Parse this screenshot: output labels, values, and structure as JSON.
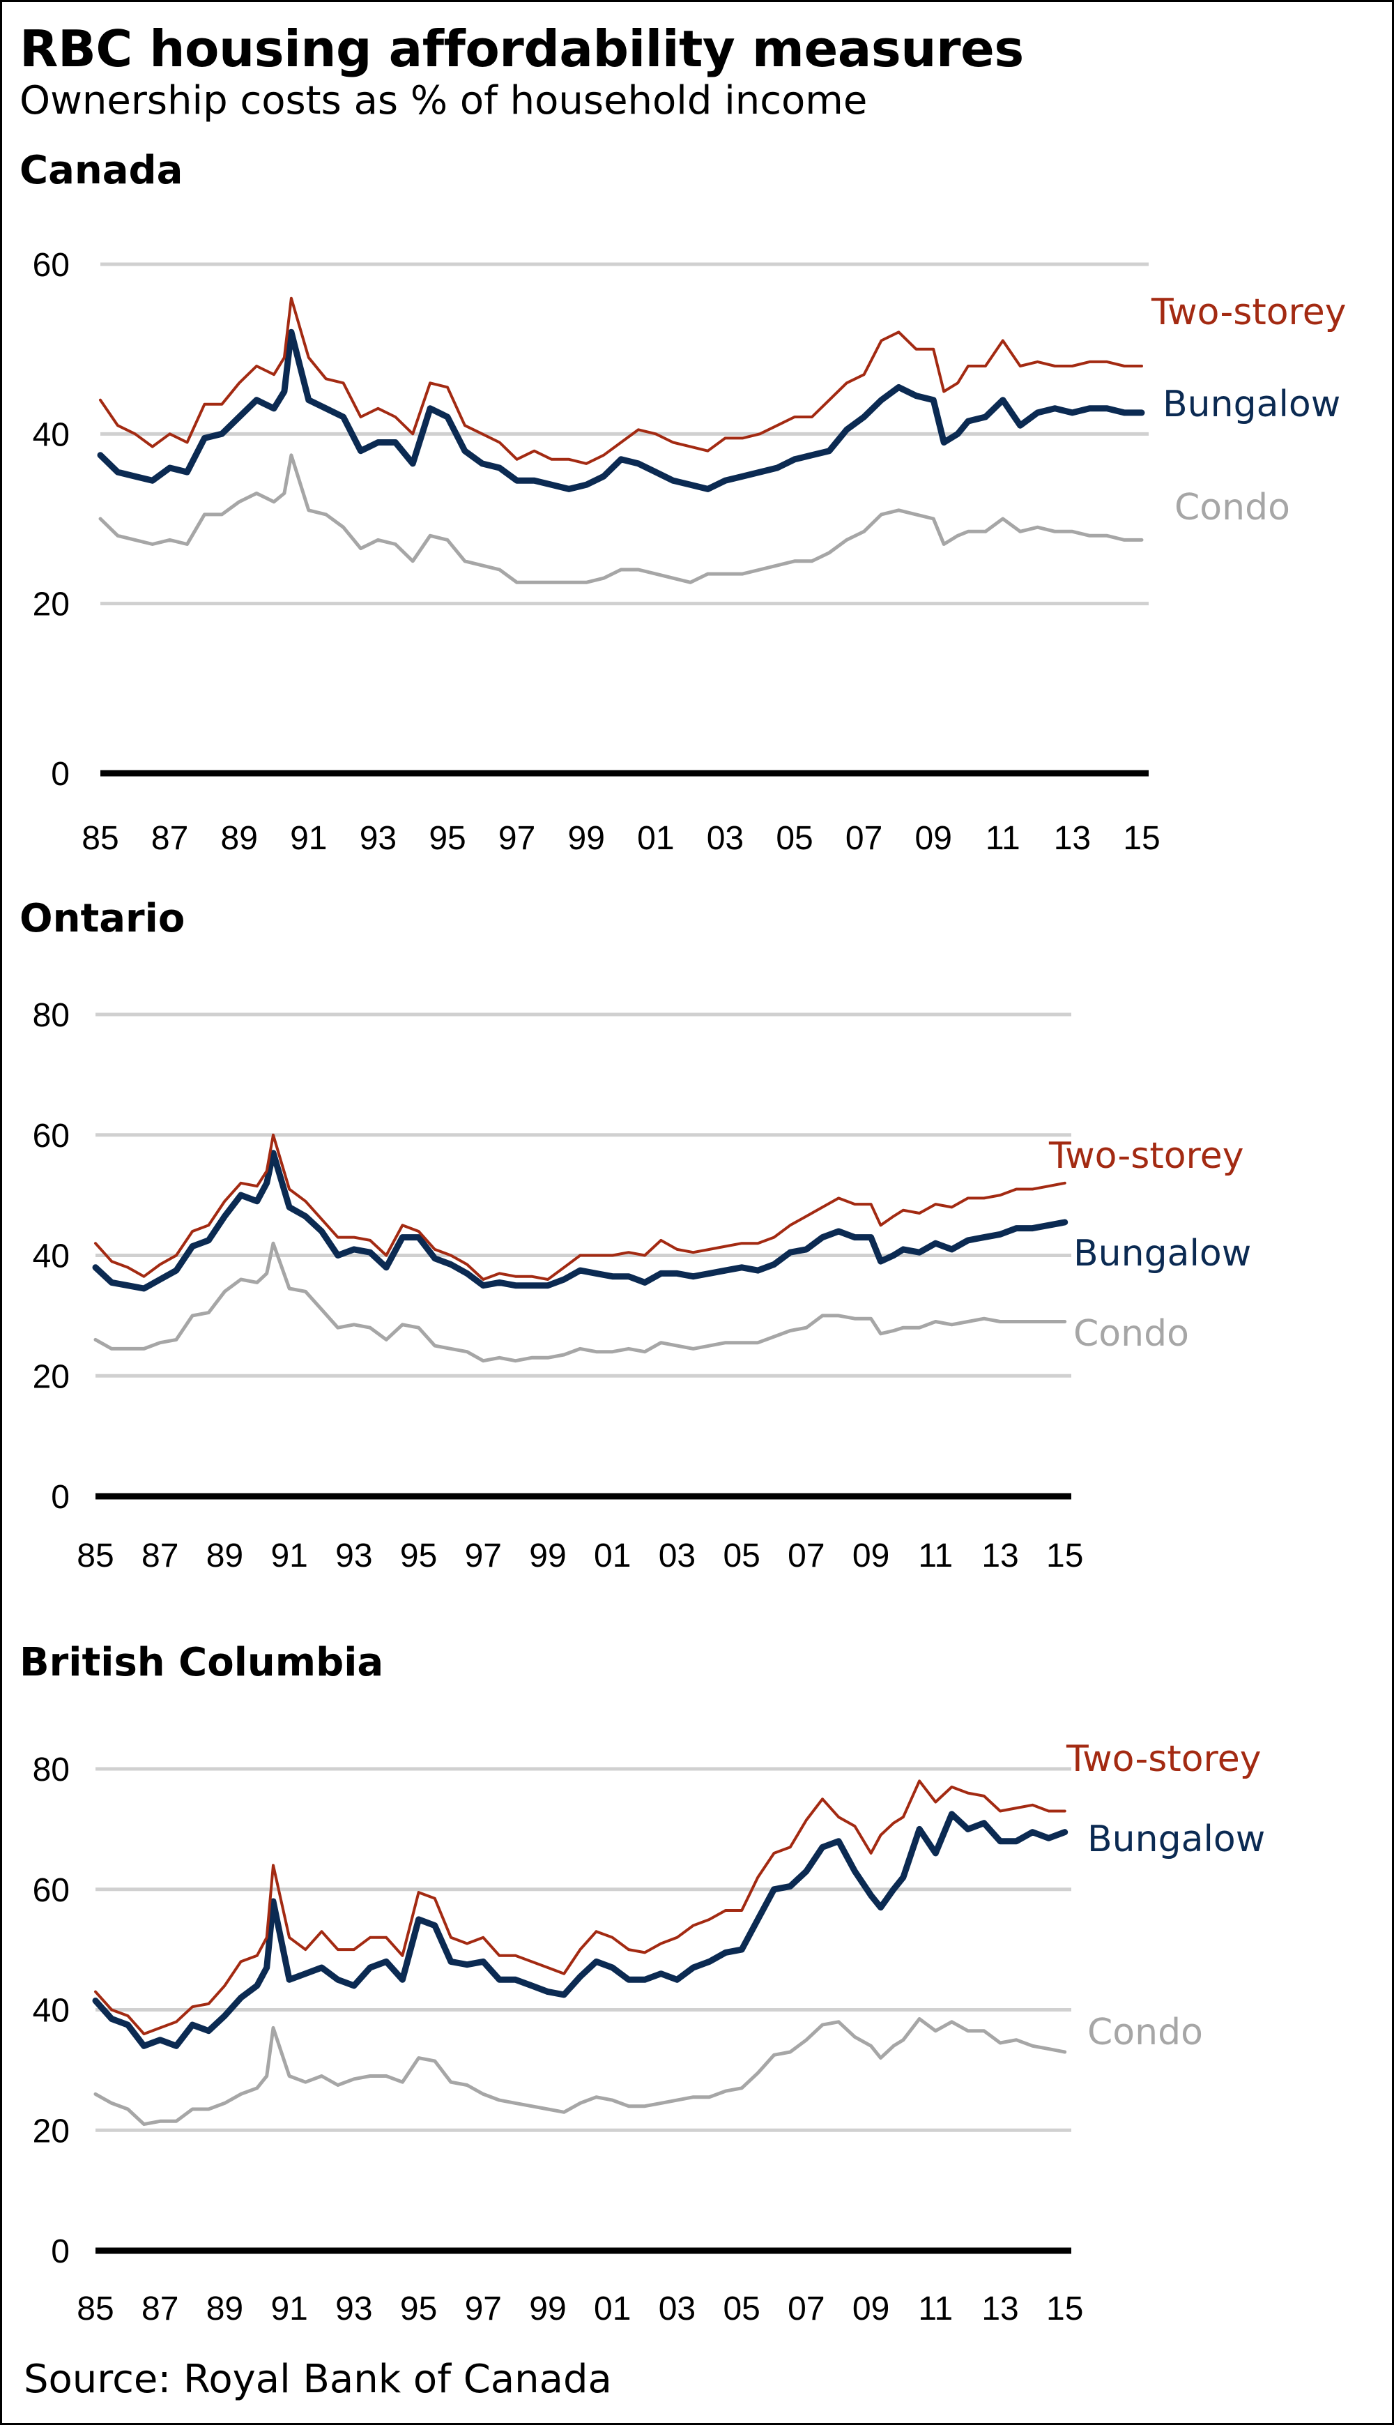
{
  "header": {
    "title": "RBC housing affordability measures",
    "subtitle": "Ownership costs as % of household income"
  },
  "footer": {
    "source": "Source: Royal Bank of Canada"
  },
  "colors": {
    "two_storey": "#a32a12",
    "bungalow": "#0b2a52",
    "condo": "#a6a6a6",
    "grid": "#d0d0d0",
    "axis": "#000000"
  },
  "chart_data": [
    {
      "type": "line",
      "title": "Canada",
      "xlabel": "",
      "ylabel": "",
      "ylim": [
        0,
        60
      ],
      "yticks": [
        "0",
        "20",
        "40",
        "60"
      ],
      "xlim": [
        1985,
        2015.2
      ],
      "xticks": [
        "85",
        "87",
        "89",
        "91",
        "93",
        "95",
        "97",
        "99",
        "01",
        "03",
        "05",
        "07",
        "09",
        "11",
        "13",
        "15"
      ],
      "grid": true,
      "legend": "inline-right",
      "x": [
        1985,
        1985.5,
        1986,
        1986.5,
        1987,
        1987.5,
        1988,
        1988.5,
        1989,
        1989.5,
        1990,
        1990.3,
        1990.5,
        1991,
        1991.5,
        1992,
        1992.5,
        1993,
        1993.5,
        1994,
        1994.5,
        1995,
        1995.5,
        1996,
        1996.5,
        1997,
        1997.5,
        1998,
        1998.5,
        1999,
        1999.5,
        2000,
        2000.5,
        2001,
        2001.5,
        2002,
        2002.5,
        2003,
        2003.5,
        2004,
        2004.5,
        2005,
        2005.5,
        2006,
        2006.5,
        2007,
        2007.5,
        2008,
        2008.5,
        2009,
        2009.3,
        2009.7,
        2010,
        2010.5,
        2011,
        2011.5,
        2012,
        2012.5,
        2013,
        2013.5,
        2014,
        2014.5,
        2015
      ],
      "series": [
        {
          "name": "Two-storey",
          "values": [
            44,
            41,
            40,
            38.5,
            40,
            39,
            43.5,
            43.5,
            46,
            48,
            47,
            49,
            56,
            49,
            46.5,
            46,
            42,
            43,
            42,
            40,
            46,
            45.5,
            41,
            40,
            39,
            37,
            38,
            37,
            37,
            36.5,
            37.5,
            39,
            40.5,
            40,
            39,
            38.5,
            38,
            39.5,
            39.5,
            40,
            41,
            42,
            42,
            44,
            46,
            47,
            51,
            52,
            50,
            50,
            45,
            46,
            48,
            48,
            51,
            48,
            48.5,
            48,
            48,
            48.5,
            48.5,
            48,
            48
          ]
        },
        {
          "name": "Bungalow",
          "values": [
            37.5,
            35.5,
            35,
            34.5,
            36,
            35.5,
            39.5,
            40,
            42,
            44,
            43,
            45,
            52,
            44,
            43,
            42,
            38,
            39,
            39,
            36.5,
            43,
            42,
            38,
            36.5,
            36,
            34.5,
            34.5,
            34,
            33.5,
            34,
            35,
            37,
            36.5,
            35.5,
            34.5,
            34,
            33.5,
            34.5,
            35,
            35.5,
            36,
            37,
            37.5,
            38,
            40.5,
            42,
            44,
            45.5,
            44.5,
            44,
            39,
            40,
            41.5,
            42,
            44,
            41,
            42.5,
            43,
            42.5,
            43,
            43,
            42.5,
            42.5
          ]
        },
        {
          "name": "Condo",
          "values": [
            30,
            28,
            27.5,
            27,
            27.5,
            27,
            30.5,
            30.5,
            32,
            33,
            32,
            33,
            37.5,
            31,
            30.5,
            29,
            26.5,
            27.5,
            27,
            25,
            28,
            27.5,
            25,
            24.5,
            24,
            22.5,
            22.5,
            22.5,
            22.5,
            22.5,
            23,
            24,
            24,
            23.5,
            23,
            22.5,
            23.5,
            23.5,
            23.5,
            24,
            24.5,
            25,
            25,
            26,
            27.5,
            28.5,
            30.5,
            31,
            30.5,
            30,
            27,
            28,
            28.5,
            28.5,
            30,
            28.5,
            29,
            28.5,
            28.5,
            28,
            28,
            27.5,
            27.5
          ]
        }
      ]
    },
    {
      "type": "line",
      "title": "Ontario",
      "xlabel": "",
      "ylabel": "",
      "ylim": [
        0,
        80
      ],
      "yticks": [
        "0",
        "20",
        "40",
        "60",
        "80"
      ],
      "xlim": [
        1985,
        2015.2
      ],
      "xticks": [
        "85",
        "87",
        "89",
        "91",
        "93",
        "95",
        "97",
        "99",
        "01",
        "03",
        "05",
        "07",
        "09",
        "11",
        "13",
        "15"
      ],
      "grid": true,
      "legend": "inline-right",
      "x": [
        1985,
        1985.5,
        1986,
        1986.5,
        1987,
        1987.5,
        1988,
        1988.5,
        1989,
        1989.5,
        1990,
        1990.3,
        1990.5,
        1991,
        1991.5,
        1992,
        1992.5,
        1993,
        1993.5,
        1994,
        1994.5,
        1995,
        1995.5,
        1996,
        1996.5,
        1997,
        1997.5,
        1998,
        1998.5,
        1999,
        1999.5,
        2000,
        2000.5,
        2001,
        2001.5,
        2002,
        2002.5,
        2003,
        2003.5,
        2004,
        2004.5,
        2005,
        2005.5,
        2006,
        2006.5,
        2007,
        2007.5,
        2008,
        2008.5,
        2009,
        2009.3,
        2009.7,
        2010,
        2010.5,
        2011,
        2011.5,
        2012,
        2012.5,
        2013,
        2013.5,
        2014,
        2014.5,
        2015
      ],
      "series": [
        {
          "name": "Two-storey",
          "values": [
            42,
            39,
            38,
            36.5,
            38.5,
            40,
            44,
            45,
            49,
            52,
            51.5,
            54,
            60,
            51,
            49,
            46,
            43,
            43,
            42.5,
            40,
            45,
            44,
            41,
            40,
            38.5,
            36,
            37,
            36.5,
            36.5,
            36,
            38,
            40,
            40,
            40,
            40.5,
            40,
            42.5,
            41,
            40.5,
            41,
            41.5,
            42,
            42,
            43,
            45,
            46.5,
            48,
            49.5,
            48.5,
            48.5,
            45,
            46.5,
            47.5,
            47,
            48.5,
            48,
            49.5,
            49.5,
            50,
            51,
            51,
            51.5,
            52
          ]
        },
        {
          "name": "Bungalow",
          "values": [
            38,
            35.5,
            35,
            34.5,
            36,
            37.5,
            41.5,
            42.5,
            46.5,
            50,
            49,
            52,
            57,
            48,
            46.5,
            44,
            40,
            41,
            40.5,
            38,
            43,
            43,
            39.5,
            38.5,
            37,
            35,
            35.5,
            35,
            35,
            35,
            36,
            37.5,
            37,
            36.5,
            36.5,
            35.5,
            37,
            37,
            36.5,
            37,
            37.5,
            38,
            37.5,
            38.5,
            40.5,
            41,
            43,
            44,
            43,
            43,
            39,
            40,
            41,
            40.5,
            42,
            41,
            42.5,
            43,
            43.5,
            44.5,
            44.5,
            45,
            45.5
          ]
        },
        {
          "name": "Condo",
          "values": [
            26,
            24.5,
            24.5,
            24.5,
            25.5,
            26,
            30,
            30.5,
            34,
            36,
            35.5,
            37,
            42,
            34.5,
            34,
            31,
            28,
            28.5,
            28,
            26,
            28.5,
            28,
            25,
            24.5,
            24,
            22.5,
            23,
            22.5,
            23,
            23,
            23.5,
            24.5,
            24,
            24,
            24.5,
            24,
            25.5,
            25,
            24.5,
            25,
            25.5,
            25.5,
            25.5,
            26.5,
            27.5,
            28,
            30,
            30,
            29.5,
            29.5,
            27,
            27.5,
            28,
            28,
            29,
            28.5,
            29,
            29.5,
            29,
            29,
            29,
            29,
            29
          ]
        }
      ]
    },
    {
      "type": "line",
      "title": "British Columbia",
      "xlabel": "",
      "ylabel": "",
      "ylim": [
        0,
        80
      ],
      "yticks": [
        "0",
        "20",
        "40",
        "60",
        "80"
      ],
      "xlim": [
        1985,
        2015.2
      ],
      "xticks": [
        "85",
        "87",
        "89",
        "91",
        "93",
        "95",
        "97",
        "99",
        "01",
        "03",
        "05",
        "07",
        "09",
        "11",
        "13",
        "15"
      ],
      "grid": true,
      "legend": "inline-right",
      "x": [
        1985,
        1985.5,
        1986,
        1986.5,
        1987,
        1987.5,
        1988,
        1988.5,
        1989,
        1989.5,
        1990,
        1990.3,
        1990.5,
        1991,
        1991.5,
        1992,
        1992.5,
        1993,
        1993.5,
        1994,
        1994.5,
        1995,
        1995.5,
        1996,
        1996.5,
        1997,
        1997.5,
        1998,
        1998.5,
        1999,
        1999.5,
        2000,
        2000.5,
        2001,
        2001.5,
        2002,
        2002.5,
        2003,
        2003.5,
        2004,
        2004.5,
        2005,
        2005.5,
        2006,
        2006.5,
        2007,
        2007.5,
        2008,
        2008.5,
        2009,
        2009.3,
        2009.7,
        2010,
        2010.5,
        2011,
        2011.5,
        2012,
        2012.5,
        2013,
        2013.5,
        2014,
        2014.5,
        2015
      ],
      "series": [
        {
          "name": "Two-storey",
          "values": [
            43,
            40,
            39,
            36,
            37,
            38,
            40.5,
            41,
            44,
            48,
            49,
            52,
            64,
            52,
            50,
            53,
            50,
            50,
            52,
            52,
            49,
            59.5,
            58.5,
            52,
            51,
            52,
            49,
            49,
            48,
            47,
            46,
            50,
            53,
            52,
            50,
            49.5,
            51,
            52,
            54,
            55,
            56.5,
            56.5,
            62,
            66,
            67,
            71.5,
            75,
            72,
            70.5,
            66,
            69,
            71,
            72,
            78,
            74.5,
            77,
            76,
            75.5,
            73,
            73.5,
            74,
            73,
            73
          ]
        },
        {
          "name": "Bungalow",
          "values": [
            41.5,
            38.5,
            37.5,
            34,
            35,
            34,
            37.5,
            36.5,
            39,
            42,
            44,
            47,
            58,
            45,
            46,
            47,
            45,
            44,
            47,
            48,
            45,
            55,
            54,
            48,
            47.5,
            48,
            45,
            45,
            44,
            43,
            42.5,
            45.5,
            48,
            47,
            45,
            45,
            46,
            45,
            47,
            48,
            49.5,
            50,
            55,
            60,
            60.5,
            63,
            67,
            68,
            63,
            59,
            57,
            60,
            62,
            70,
            66,
            72.5,
            70,
            71,
            68,
            68,
            69.5,
            68.5,
            69.5
          ]
        },
        {
          "name": "Condo",
          "values": [
            26,
            24.5,
            23.5,
            21,
            21.5,
            21.5,
            23.5,
            23.5,
            24.5,
            26,
            27,
            29,
            37,
            29,
            28,
            29,
            27.5,
            28.5,
            29,
            29,
            28,
            32,
            31.5,
            28,
            27.5,
            26,
            25,
            24.5,
            24,
            23.5,
            23,
            24.5,
            25.5,
            25,
            24,
            24,
            24.5,
            25,
            25.5,
            25.5,
            26.5,
            27,
            29.5,
            32.5,
            33,
            35,
            37.5,
            38,
            35.5,
            34,
            32,
            34,
            35,
            38.5,
            36.5,
            38,
            36.5,
            36.5,
            34.5,
            35,
            34,
            33.5,
            33
          ]
        }
      ]
    }
  ]
}
